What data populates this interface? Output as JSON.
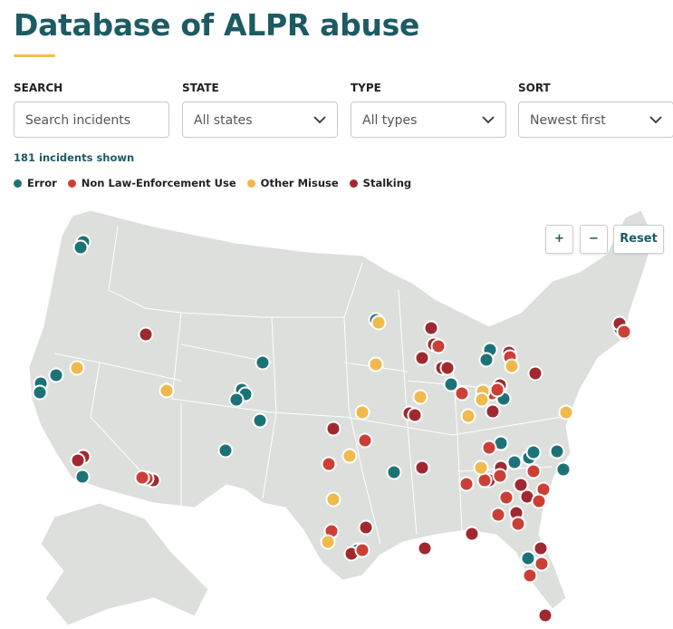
{
  "header": {
    "title": "Database of ALPR abuse"
  },
  "filters": [
    {
      "label": "SEARCH",
      "placeholder": "Search incidents"
    },
    {
      "label": "STATE",
      "value": "All states"
    },
    {
      "label": "TYPE",
      "value": "All types"
    },
    {
      "label": "SORT",
      "value": "Newest first"
    }
  ],
  "count": "181 incidents shown",
  "legend": [
    {
      "label": "Error",
      "color": "#1c7377"
    },
    {
      "label": "Non Law-Enforcement Use",
      "color": "#cc3f36"
    },
    {
      "label": "Other Misuse",
      "color": "#f0b94b"
    },
    {
      "label": "Stalking",
      "color": "#a0292f"
    }
  ],
  "map_controls": [
    "+",
    "−",
    "Reset"
  ]
}
